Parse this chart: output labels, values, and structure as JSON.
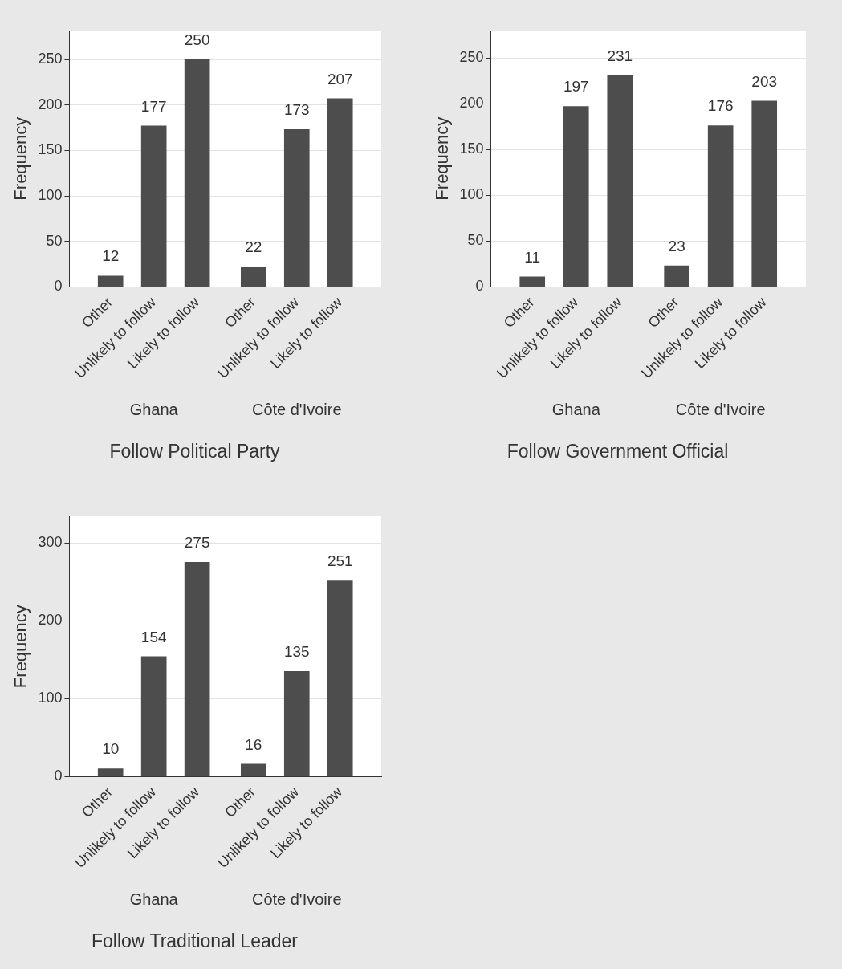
{
  "chart_data": [
    {
      "type": "bar",
      "title": "Follow Political Party",
      "ylabel": "Frequency",
      "categories": [
        "Other",
        "Unlikely to follow",
        "Likely to follow",
        "Other",
        "Unlikely to follow",
        "Likely to follow"
      ],
      "values": [
        12,
        177,
        250,
        22,
        173,
        207
      ],
      "color": "#4d4d4d",
      "ylim": [
        0,
        282
      ],
      "yticks": [
        0,
        50,
        100,
        150,
        200,
        250
      ],
      "grid": "y",
      "data_labels": true,
      "annotations": [
        "Ghana",
        "Côte d'Ivoire"
      ]
    },
    {
      "type": "bar",
      "title": "Follow Government Official",
      "ylabel": "Frequency",
      "categories": [
        "Other",
        "Unlikely to follow",
        "Likely to follow",
        "Other",
        "Unlikely to follow",
        "Likely to follow"
      ],
      "values": [
        11,
        197,
        231,
        23,
        176,
        203
      ],
      "color": "#4d4d4d",
      "ylim": [
        0,
        280
      ],
      "yticks": [
        0,
        50,
        100,
        150,
        200,
        250
      ],
      "grid": "y",
      "data_labels": true,
      "annotations": [
        "Ghana",
        "Côte d'Ivoire"
      ]
    },
    {
      "type": "bar",
      "title": "Follow Traditional Leader",
      "ylabel": "Frequency",
      "categories": [
        "Other",
        "Unlikely to follow",
        "Likely to follow",
        "Other",
        "Unlikely to follow",
        "Likely to follow"
      ],
      "values": [
        10,
        154,
        275,
        16,
        135,
        251
      ],
      "color": "#4d4d4d",
      "ylim": [
        0,
        334
      ],
      "yticks": [
        0,
        100,
        200,
        300
      ],
      "grid": "y",
      "data_labels": true,
      "annotations": [
        "Ghana",
        "Côte d'Ivoire"
      ]
    }
  ]
}
